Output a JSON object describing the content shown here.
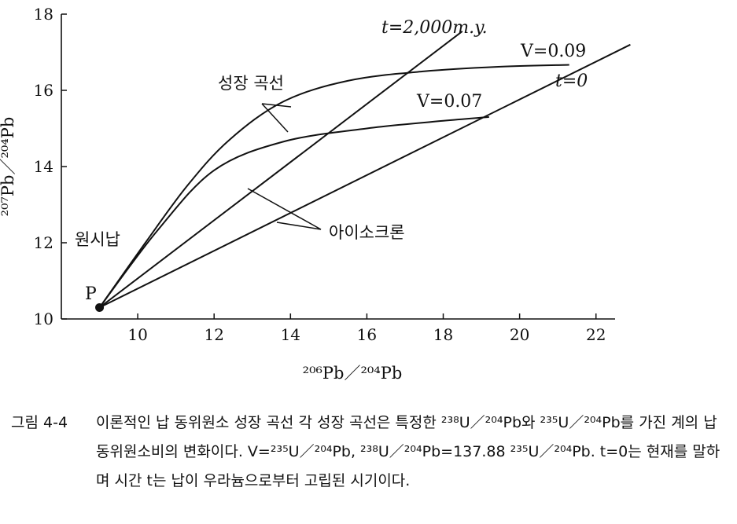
{
  "chart_data": {
    "type": "line",
    "xlabel": "²⁰⁶Pb／²⁰⁴Pb",
    "ylabel": "²⁰⁷Pb／²⁰⁴Pb",
    "xlim": [
      8,
      22.5
    ],
    "ylim": [
      10,
      18
    ],
    "xticks": [
      "10",
      "12",
      "14",
      "16",
      "18",
      "20",
      "22"
    ],
    "yticks": [
      "10",
      "12",
      "14",
      "16",
      "18"
    ],
    "origin": {
      "label": "P",
      "x": 9.0,
      "y": 10.3
    },
    "series": [
      {
        "name": "V=0.09",
        "kind": "growth",
        "x": [
          9.0,
          10.2,
          11.3,
          12.4,
          13.8,
          15.5,
          17.5,
          19.5,
          21.3
        ],
        "y": [
          10.3,
          12.0,
          13.5,
          14.7,
          15.7,
          16.25,
          16.5,
          16.62,
          16.67
        ]
      },
      {
        "name": "V=0.07",
        "kind": "growth",
        "x": [
          9.0,
          10.5,
          12.0,
          13.8,
          16.0,
          18.0,
          19.2
        ],
        "y": [
          10.3,
          12.3,
          13.9,
          14.65,
          15.0,
          15.2,
          15.3
        ]
      },
      {
        "name": "t=2,000m.y.",
        "kind": "isochron",
        "x": [
          9.0,
          18.5
        ],
        "y": [
          10.3,
          17.55
        ]
      },
      {
        "name": "t=0",
        "kind": "isochron",
        "x": [
          9.0,
          22.9
        ],
        "y": [
          10.3,
          17.2
        ]
      }
    ]
  },
  "labels": {
    "growth_curve": "성장 곡선",
    "isochron": "아이소크론",
    "primordial_lead": "원시납",
    "t2000": "t=2,000m.y.",
    "v009": "V=0.09",
    "v007": "V=0.07",
    "t0": "t=0",
    "p": "P"
  },
  "caption": {
    "number": "그림 4-4",
    "text": "이론적인 납 동위원소 성장 곡선 각 성장 곡선은 특정한 ²³⁸U／²⁰⁴Pb와 ²³⁵U／²⁰⁴Pb를 가진 계의 납 동위원소비의 변화이다. V=²³⁵U／²⁰⁴Pb, ²³⁸U／²⁰⁴Pb=137.88 ²³⁵U／²⁰⁴Pb. t=0는 현재를 말하며 시간 t는 납이 우라늄으로부터 고립된 시기이다."
  }
}
